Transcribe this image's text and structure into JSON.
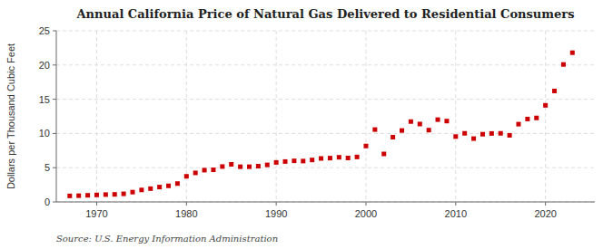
{
  "chart_data": {
    "type": "scatter",
    "title": "Annual California Price of Natural Gas Delivered to Residential Consumers",
    "ylabel": "Dollars per Thousand Cubic Feet",
    "annotations": [
      "Source: U.S. Energy Information Administration"
    ],
    "x": [
      1967,
      1968,
      1969,
      1970,
      1971,
      1972,
      1973,
      1974,
      1975,
      1976,
      1977,
      1978,
      1979,
      1980,
      1981,
      1982,
      1983,
      1984,
      1985,
      1986,
      1987,
      1988,
      1989,
      1990,
      1991,
      1992,
      1993,
      1994,
      1995,
      1996,
      1997,
      1998,
      1999,
      2000,
      2001,
      2002,
      2003,
      2004,
      2005,
      2006,
      2007,
      2008,
      2009,
      2010,
      2011,
      2012,
      2013,
      2014,
      2015,
      2016,
      2017,
      2018,
      2019,
      2020,
      2021,
      2022,
      2023
    ],
    "values": [
      0.88,
      0.91,
      0.97,
      1.02,
      1.07,
      1.1,
      1.18,
      1.43,
      1.75,
      1.94,
      2.17,
      2.35,
      2.68,
      3.74,
      4.24,
      4.64,
      4.69,
      5.17,
      5.49,
      5.14,
      5.14,
      5.22,
      5.41,
      5.77,
      5.9,
      6.0,
      5.97,
      6.13,
      6.35,
      6.4,
      6.52,
      6.42,
      6.57,
      8.17,
      10.57,
      7.01,
      9.46,
      10.43,
      11.74,
      11.38,
      10.49,
      12.02,
      11.81,
      9.55,
      10.02,
      9.25,
      9.89,
      10.0,
      10.02,
      9.73,
      11.36,
      12.11,
      12.27,
      14.11,
      16.21,
      20.08,
      21.8
    ],
    "color": "#cc0000",
    "marker": "square",
    "xlim": [
      1965.5,
      2025.5
    ],
    "xticks": [
      1970,
      1980,
      1990,
      2000,
      2010,
      2020
    ],
    "ylim": [
      0,
      25
    ],
    "yticks": [
      0,
      5,
      10,
      15,
      20,
      25
    ],
    "grid": true
  }
}
